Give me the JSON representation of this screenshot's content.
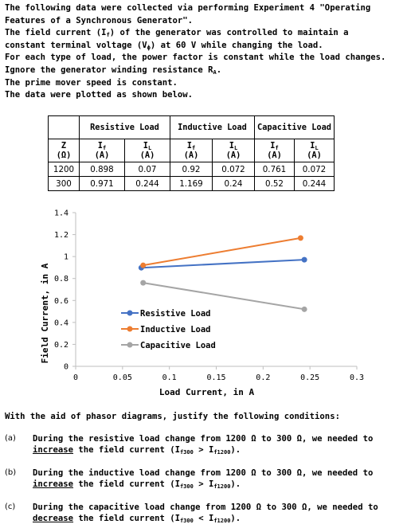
{
  "intro": {
    "line1": "The following data were collected via performing Experiment 4 \"Operating",
    "line2": "Features of a Synchronous Generator\".",
    "line3a": "The field current (I",
    "line3_sub": "f",
    "line3b": ") of the generator was controlled to maintain a",
    "line4a": "constant terminal voltage (V",
    "line4_sub": "ϕ",
    "line4b": ") at 60 V while changing the load.",
    "line5": "For each type of load, the power factor is constant while the load changes.",
    "line6a": "Ignore the generator winding resistance R",
    "line6_sub": "A",
    "line6b": ".",
    "line7": "The prime mover speed is constant.",
    "line8": "The data were plotted as shown below."
  },
  "table": {
    "groups": [
      "Resistive Load",
      "Inductive Load",
      "Capacitive Load"
    ],
    "z_label": "Z",
    "z_unit": "(Ω)",
    "col_if": "I",
    "col_if_sub": "f",
    "col_il": "I",
    "col_il_sub": "L",
    "unit_a": "(A)",
    "rows": [
      {
        "z": "1200",
        "cells": [
          "0.898",
          "0.07",
          "0.92",
          "0.072",
          "0.761",
          "0.072"
        ]
      },
      {
        "z": "300",
        "cells": [
          "0.971",
          "0.244",
          "1.169",
          "0.24",
          "0.52",
          "0.244"
        ]
      }
    ]
  },
  "chart_data": {
    "type": "line",
    "xlabel": "Load Current, in A",
    "ylabel": "Field Current, in A",
    "xlim": [
      0,
      0.3
    ],
    "ylim": [
      0,
      1.4
    ],
    "xticks": [
      "0",
      "0.05",
      "0.1",
      "0.15",
      "0.2",
      "0.25",
      "0.3"
    ],
    "yticks": [
      "0",
      "0.2",
      "0.4",
      "0.6",
      "0.8",
      "1",
      "1.2",
      "1.4"
    ],
    "legend_position": "inside-bottom-left",
    "series": [
      {
        "name": "Resistive Load",
        "color": "#4472c4",
        "points": [
          [
            0.07,
            0.898
          ],
          [
            0.244,
            0.971
          ]
        ]
      },
      {
        "name": "Inductive Load",
        "color": "#ed7d31",
        "points": [
          [
            0.072,
            0.92
          ],
          [
            0.24,
            1.169
          ]
        ]
      },
      {
        "name": "Capacitive Load",
        "color": "#a5a5a5",
        "points": [
          [
            0.072,
            0.761
          ],
          [
            0.244,
            0.52
          ]
        ]
      }
    ]
  },
  "question": "With the aid of phasor diagrams, justify the following conditions:",
  "items": [
    {
      "label": "(a)",
      "text1": "During the resistive load change from 1200 Ω to 300 Ω, we needed to",
      "verb": "increase",
      "tail": " the field current (I",
      "s1": "f300",
      "mid": " > I",
      "s2": "f1200",
      "end": ")."
    },
    {
      "label": "(b)",
      "text1": "During the inductive load change from 1200 Ω to 300 Ω, we needed to",
      "verb": "increase",
      "tail": " the field current (I",
      "s1": "f300",
      "mid": " > I",
      "s2": "f1200",
      "end": ")."
    },
    {
      "label": "(c)",
      "text1": "During the capacitive load change from 1200 Ω to 300 Ω, we needed to",
      "verb": "decrease",
      "tail": " the field current (I",
      "s1": "f300",
      "mid": " < I",
      "s2": "f1200",
      "end": ")."
    }
  ]
}
